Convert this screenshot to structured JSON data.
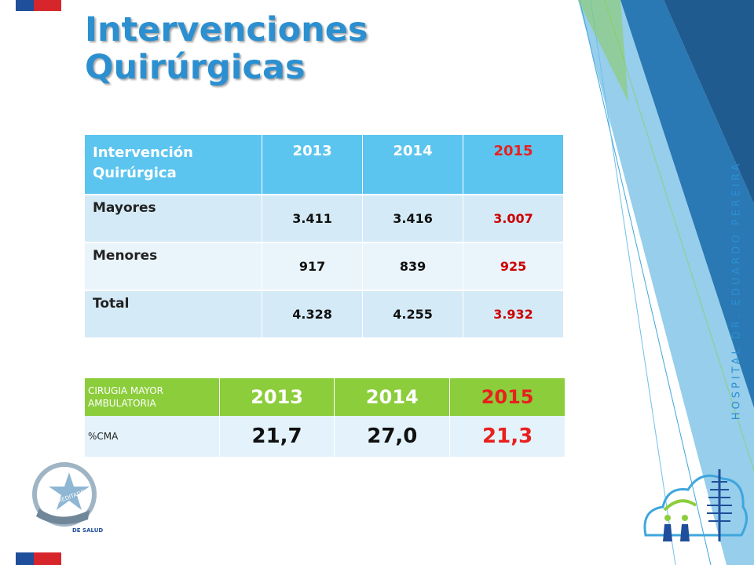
{
  "slide": {
    "title_line1": "Intervenciones",
    "title_line2": "Quirúrgicas",
    "side_text": "HOSPITAL DR. EDUARDO PEREIRA",
    "accent_color": "#2b8fd0"
  },
  "table_main": {
    "headers": [
      "Intervención Quirúrgica",
      "2013",
      "2014",
      "2015"
    ],
    "rows": [
      {
        "label": "Mayores",
        "values": [
          "3.411",
          "3.416",
          "3.007"
        ]
      },
      {
        "label": "Menores",
        "values": [
          "917",
          "839",
          "925"
        ]
      },
      {
        "label": "Total",
        "values": [
          "4.328",
          "4.255",
          "3.932"
        ]
      }
    ],
    "header_color": "#5bc5ef",
    "highlight_color": "#cc0000"
  },
  "table_cma": {
    "headers": [
      "CIRUGIA MAYOR AMBULATORIA",
      "2013",
      "2014",
      "2015"
    ],
    "rows": [
      {
        "label": "%CMA",
        "values": [
          "21,7",
          "27,0",
          "21,3"
        ]
      }
    ],
    "header_color": "#8ccd3c"
  },
  "logos": {
    "accreditation_text": "ACREDITADO",
    "accreditation_bottom": "DE SALUD",
    "accreditation_icon": "star-seal-icon",
    "hospital_icon": "tree-people-icon"
  }
}
